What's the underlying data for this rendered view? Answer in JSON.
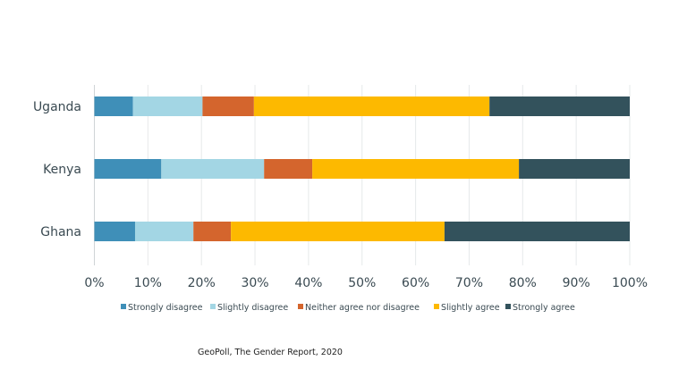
{
  "chart_data": {
    "type": "bar",
    "orientation": "horizontal",
    "stacked": true,
    "normalized": true,
    "categories": [
      "Uganda",
      "Kenya",
      "Ghana"
    ],
    "series": [
      {
        "name": "Strongly disagree",
        "color": "#3f8fb8",
        "values": [
          7.2,
          12.5,
          7.6
        ]
      },
      {
        "name": "Slightly disagree",
        "color": "#a3d6e4",
        "values": [
          13.0,
          19.2,
          10.9
        ]
      },
      {
        "name": "Neither agree nor disagree",
        "color": "#d4652d",
        "values": [
          9.6,
          9.0,
          7.0
        ]
      },
      {
        "name": "Slightly agree",
        "color": "#fdb900",
        "values": [
          44.0,
          38.6,
          39.9
        ]
      },
      {
        "name": "Strongly agree",
        "color": "#33525c",
        "values": [
          26.2,
          20.7,
          34.6
        ]
      }
    ],
    "xlim": [
      0,
      100
    ],
    "x_ticks": [
      "0%",
      "10%",
      "20%",
      "30%",
      "40%",
      "50%",
      "60%",
      "70%",
      "80%",
      "90%",
      "100%"
    ],
    "grid": true,
    "legend_placement": "bottom",
    "source": "GeoPoll, The Gender Report, 2020"
  }
}
